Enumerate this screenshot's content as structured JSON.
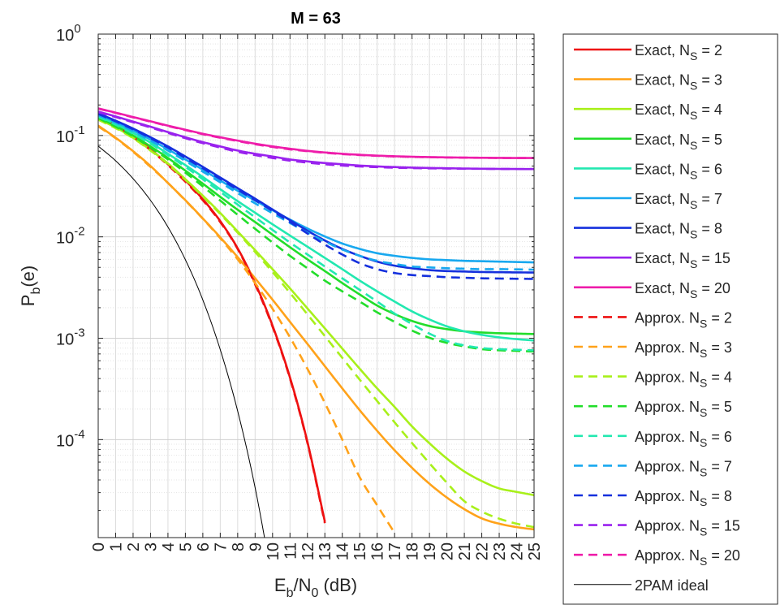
{
  "chart_data": {
    "type": "line",
    "title": "M = 63",
    "xlabel": {
      "main": "E",
      "sub1": "b",
      "mid": "/N",
      "sub2": "0",
      "tail": " (dB)"
    },
    "ylabel": {
      "main": "P",
      "sub": "b",
      "tail": "(e)"
    },
    "x_ticks": [
      "0",
      "1",
      "2",
      "3",
      "4",
      "5",
      "6",
      "7",
      "8",
      "9",
      "10",
      "11",
      "12",
      "13",
      "14",
      "15",
      "16",
      "17",
      "18",
      "19",
      "20",
      "21",
      "22",
      "23",
      "24",
      "25"
    ],
    "y_ticks": [
      {
        "value": 1,
        "base": "10",
        "exp": "0"
      },
      {
        "value": 0.1,
        "base": "10",
        "exp": "-1"
      },
      {
        "value": 0.01,
        "base": "10",
        "exp": "-2"
      },
      {
        "value": 0.001,
        "base": "10",
        "exp": "-3"
      },
      {
        "value": 0.0001,
        "base": "10",
        "exp": "-4"
      }
    ],
    "xlim": [
      0,
      25
    ],
    "ylim": [
      1.08e-05,
      1
    ],
    "yscale": "log",
    "grid": true,
    "legend_location": "outside right",
    "x": [
      0,
      1,
      2,
      3,
      4,
      5,
      6,
      7,
      8,
      9,
      10,
      11,
      12,
      13,
      14,
      15,
      16,
      17,
      18,
      19,
      20,
      21,
      22,
      23,
      24,
      25
    ],
    "series": [
      {
        "name": "Exact,  N_S = 2",
        "label": "Exact,  N",
        "sub": "S",
        "suffix": " = 2",
        "color": "#ee1111",
        "dash": false,
        "y": [
          0.16,
          0.128,
          0.098,
          0.073,
          0.052,
          0.036,
          0.0235,
          0.0143,
          0.0077,
          0.0035,
          0.00133,
          0.00041,
          9.5e-05,
          1.55e-05,
          null,
          null,
          null,
          null,
          null,
          null,
          null,
          null,
          null,
          null,
          null,
          null
        ]
      },
      {
        "name": "Exact,  N_S = 3",
        "label": "Exact,  N",
        "sub": "S",
        "suffix": " = 3",
        "color": "#ffa21a",
        "dash": false,
        "y": [
          0.125,
          0.095,
          0.07,
          0.05,
          0.034,
          0.023,
          0.0152,
          0.0099,
          0.0063,
          0.0039,
          0.0024,
          0.00145,
          0.00088,
          0.00053,
          0.00032,
          0.000195,
          0.000122,
          7.85e-05,
          5.27e-05,
          3.67e-05,
          2.68e-05,
          2.06e-05,
          1.67e-05,
          1.48e-05,
          1.37e-05,
          1.3e-05
        ]
      },
      {
        "name": "Exact,  N_S = 4",
        "label": "Exact,  N",
        "sub": "S",
        "suffix": " = 4",
        "color": "#a8f01a",
        "dash": false,
        "y": [
          0.145,
          0.12,
          0.095,
          0.072,
          0.053,
          0.037,
          0.0255,
          0.0172,
          0.0113,
          0.0074,
          0.0048,
          0.0031,
          0.00197,
          0.00125,
          0.00079,
          0.0005,
          0.00032,
          0.00021,
          0.000135,
          9.2e-05,
          6.5e-05,
          4.85e-05,
          3.9e-05,
          3.3e-05,
          3.05e-05,
          2.83e-05
        ]
      },
      {
        "name": "Exact,  N_S = 5",
        "label": "Exact,  N",
        "sub": "S",
        "suffix": " = 5",
        "color": "#22dd2a",
        "dash": false,
        "y": [
          0.15,
          0.124,
          0.1,
          0.078,
          0.06,
          0.045,
          0.0335,
          0.0248,
          0.0185,
          0.014,
          0.0105,
          0.0079,
          0.006,
          0.0046,
          0.0035,
          0.0027,
          0.0021,
          0.00173,
          0.00148,
          0.00132,
          0.00123,
          0.00117,
          0.00114,
          0.00112,
          0.00111,
          0.0011
        ]
      },
      {
        "name": "Exact,  N_S = 6",
        "label": "Exact,  N",
        "sub": "S",
        "suffix": " = 6",
        "color": "#22e8b0",
        "dash": false,
        "y": [
          0.155,
          0.13,
          0.106,
          0.085,
          0.066,
          0.051,
          0.039,
          0.0295,
          0.0225,
          0.0173,
          0.0133,
          0.0103,
          0.008,
          0.0062,
          0.0048,
          0.0037,
          0.0029,
          0.0023,
          0.00184,
          0.00153,
          0.00131,
          0.00117,
          0.00108,
          0.00102,
          0.00098,
          0.00095
        ]
      },
      {
        "name": "Exact,  N_S = 7",
        "label": "Exact,  N",
        "sub": "S",
        "suffix": " = 7",
        "color": "#18a8ef",
        "dash": false,
        "y": [
          0.16,
          0.136,
          0.112,
          0.091,
          0.073,
          0.058,
          0.046,
          0.036,
          0.0285,
          0.0228,
          0.0183,
          0.0148,
          0.0121,
          0.0101,
          0.0086,
          0.0076,
          0.0069,
          0.0065,
          0.0062,
          0.006,
          0.0059,
          0.0058,
          0.00575,
          0.0057,
          0.00565,
          0.0056
        ]
      },
      {
        "name": "Exact,  N_S = 8",
        "label": "Exact,  N",
        "sub": "S",
        "suffix": " = 8",
        "color": "#1530dd",
        "dash": false,
        "y": [
          0.165,
          0.14,
          0.117,
          0.096,
          0.078,
          0.062,
          0.049,
          0.0385,
          0.0302,
          0.0238,
          0.0186,
          0.0146,
          0.0115,
          0.0092,
          0.0076,
          0.0065,
          0.0057,
          0.0052,
          0.0049,
          0.0047,
          0.0046,
          0.00455,
          0.0045,
          0.00448,
          0.00446,
          0.00445
        ]
      },
      {
        "name": "Exact,  N_S = 15",
        "label": "Exact,  N",
        "sub": "S",
        "suffix": " = 15",
        "color": "#9922ee",
        "dash": false,
        "y": [
          0.172,
          0.154,
          0.137,
          0.122,
          0.108,
          0.096,
          0.086,
          0.078,
          0.071,
          0.066,
          0.062,
          0.058,
          0.0555,
          0.0535,
          0.052,
          0.0505,
          0.0495,
          0.0488,
          0.0482,
          0.0478,
          0.0475,
          0.0472,
          0.047,
          0.0468,
          0.0467,
          0.0466
        ]
      },
      {
        "name": "Exact,  N_S = 20",
        "label": "Exact,  N",
        "sub": "S",
        "suffix": " = 20",
        "color": "#ee1caa",
        "dash": false,
        "y": [
          0.185,
          0.168,
          0.152,
          0.138,
          0.125,
          0.114,
          0.104,
          0.096,
          0.089,
          0.083,
          0.078,
          0.074,
          0.0705,
          0.068,
          0.066,
          0.0645,
          0.0633,
          0.0624,
          0.0617,
          0.0612,
          0.0608,
          0.0605,
          0.0603,
          0.0601,
          0.06,
          0.06
        ]
      },
      {
        "name": "Approx.  N_S = 2",
        "label": "Approx.  N",
        "sub": "S",
        "suffix": " = 2",
        "color": "#ee1111",
        "dash": true,
        "y": [
          0.157,
          0.126,
          0.097,
          0.072,
          0.051,
          0.035,
          0.023,
          0.014,
          0.0076,
          0.0034,
          0.0013,
          0.0004,
          9.3e-05,
          1.5e-05,
          null,
          null,
          null,
          null,
          null,
          null,
          null,
          null,
          null,
          null,
          null,
          null
        ]
      },
      {
        "name": "Approx.  N_S = 3",
        "label": "Approx.  N",
        "sub": "S",
        "suffix": " = 3",
        "color": "#ffa21a",
        "dash": true,
        "y": [
          0.123,
          0.094,
          0.069,
          0.049,
          0.034,
          0.0228,
          0.0151,
          0.0097,
          0.006,
          0.0035,
          0.00195,
          0.00102,
          0.0005,
          0.00023,
          0.0001,
          4.25e-05,
          2.25e-05,
          1.2e-05,
          null,
          null,
          null,
          null,
          null,
          null,
          null,
          null
        ]
      },
      {
        "name": "Approx.  N_S = 4",
        "label": "Approx.  N",
        "sub": "S",
        "suffix": " = 4",
        "color": "#a8f01a",
        "dash": true,
        "y": [
          0.143,
          0.118,
          0.094,
          0.071,
          0.052,
          0.0365,
          0.025,
          0.0168,
          0.011,
          0.0071,
          0.0045,
          0.0028,
          0.00172,
          0.00105,
          0.00064,
          0.00039,
          0.00024,
          0.000148,
          9.25e-05,
          5.85e-05,
          3.75e-05,
          2.47e-05,
          1.95e-05,
          1.66e-05,
          1.48e-05,
          1.37e-05
        ]
      },
      {
        "name": "Approx.  N_S = 5",
        "label": "Approx.  N",
        "sub": "S",
        "suffix": " = 5",
        "color": "#22dd2a",
        "dash": true,
        "y": [
          0.148,
          0.122,
          0.098,
          0.076,
          0.058,
          0.043,
          0.0315,
          0.0228,
          0.0165,
          0.012,
          0.0088,
          0.0065,
          0.0049,
          0.0037,
          0.0029,
          0.0023,
          0.0018,
          0.00145,
          0.00119,
          0.00101,
          0.0009,
          0.00083,
          0.00078,
          0.00076,
          0.00075,
          0.00074
        ]
      },
      {
        "name": "Approx.  N_S = 6",
        "label": "Approx.  N",
        "sub": "S",
        "suffix": " = 6",
        "color": "#22e8b0",
        "dash": true,
        "y": [
          0.153,
          0.128,
          0.104,
          0.083,
          0.064,
          0.049,
          0.037,
          0.0278,
          0.0208,
          0.0156,
          0.0117,
          0.0088,
          0.0067,
          0.0051,
          0.0039,
          0.003,
          0.0023,
          0.00175,
          0.00138,
          0.00111,
          0.00094,
          0.00085,
          0.0008,
          0.00078,
          0.00077,
          0.00076
        ]
      },
      {
        "name": "Approx.  N_S = 7",
        "label": "Approx.  N",
        "sub": "S",
        "suffix": " = 7",
        "color": "#18a8ef",
        "dash": true,
        "y": [
          0.158,
          0.134,
          0.11,
          0.089,
          0.071,
          0.056,
          0.044,
          0.0345,
          0.027,
          0.0214,
          0.0171,
          0.0137,
          0.011,
          0.009,
          0.0075,
          0.0065,
          0.0058,
          0.0054,
          0.0051,
          0.005,
          0.0049,
          0.00485,
          0.0048,
          0.0048,
          0.00478,
          0.00475
        ]
      },
      {
        "name": "Approx.  N_S = 8",
        "label": "Approx.  N",
        "sub": "S",
        "suffix": " = 8",
        "color": "#1530dd",
        "dash": true,
        "y": [
          0.163,
          0.138,
          0.115,
          0.094,
          0.076,
          0.06,
          0.0475,
          0.0372,
          0.0292,
          0.023,
          0.018,
          0.014,
          0.0108,
          0.0084,
          0.0067,
          0.0055,
          0.0048,
          0.0044,
          0.0042,
          0.0041,
          0.004,
          0.00395,
          0.0039,
          0.00388,
          0.00386,
          0.00385
        ]
      },
      {
        "name": "Approx.  N_S = 15",
        "label": "Approx.  N",
        "sub": "S",
        "suffix": " = 15",
        "color": "#9922ee",
        "dash": true,
        "y": [
          0.17,
          0.152,
          0.135,
          0.12,
          0.106,
          0.094,
          0.084,
          0.076,
          0.069,
          0.064,
          0.06,
          0.0565,
          0.054,
          0.052,
          0.0505,
          0.0495,
          0.0487,
          0.0481,
          0.0477,
          0.0474,
          0.0472,
          0.047,
          0.0469,
          0.0468,
          0.0467,
          0.0466
        ]
      },
      {
        "name": "Approx.  N_S = 20",
        "label": "Approx.  N",
        "sub": "S",
        "suffix": " = 20",
        "color": "#ee1caa",
        "dash": true,
        "y": [
          0.184,
          0.167,
          0.151,
          0.137,
          0.124,
          0.113,
          0.103,
          0.095,
          0.088,
          0.082,
          0.077,
          0.073,
          0.07,
          0.0675,
          0.0655,
          0.0641,
          0.063,
          0.0621,
          0.0615,
          0.061,
          0.0607,
          0.0604,
          0.0602,
          0.06,
          0.06,
          0.06
        ]
      },
      {
        "name": "2PAM ideal",
        "label": "2PAM ideal",
        "sub": "",
        "suffix": "",
        "color": "#000000",
        "dash": false,
        "thin": true,
        "y": [
          0.0786,
          0.0563,
          0.0375,
          0.0229,
          0.0125,
          0.00595,
          0.00239,
          0.000772,
          0.000191,
          3.36e-05,
          3.9e-06,
          null,
          null,
          null,
          null,
          null,
          null,
          null,
          null,
          null,
          null,
          null,
          null,
          null,
          null,
          null
        ]
      }
    ]
  }
}
